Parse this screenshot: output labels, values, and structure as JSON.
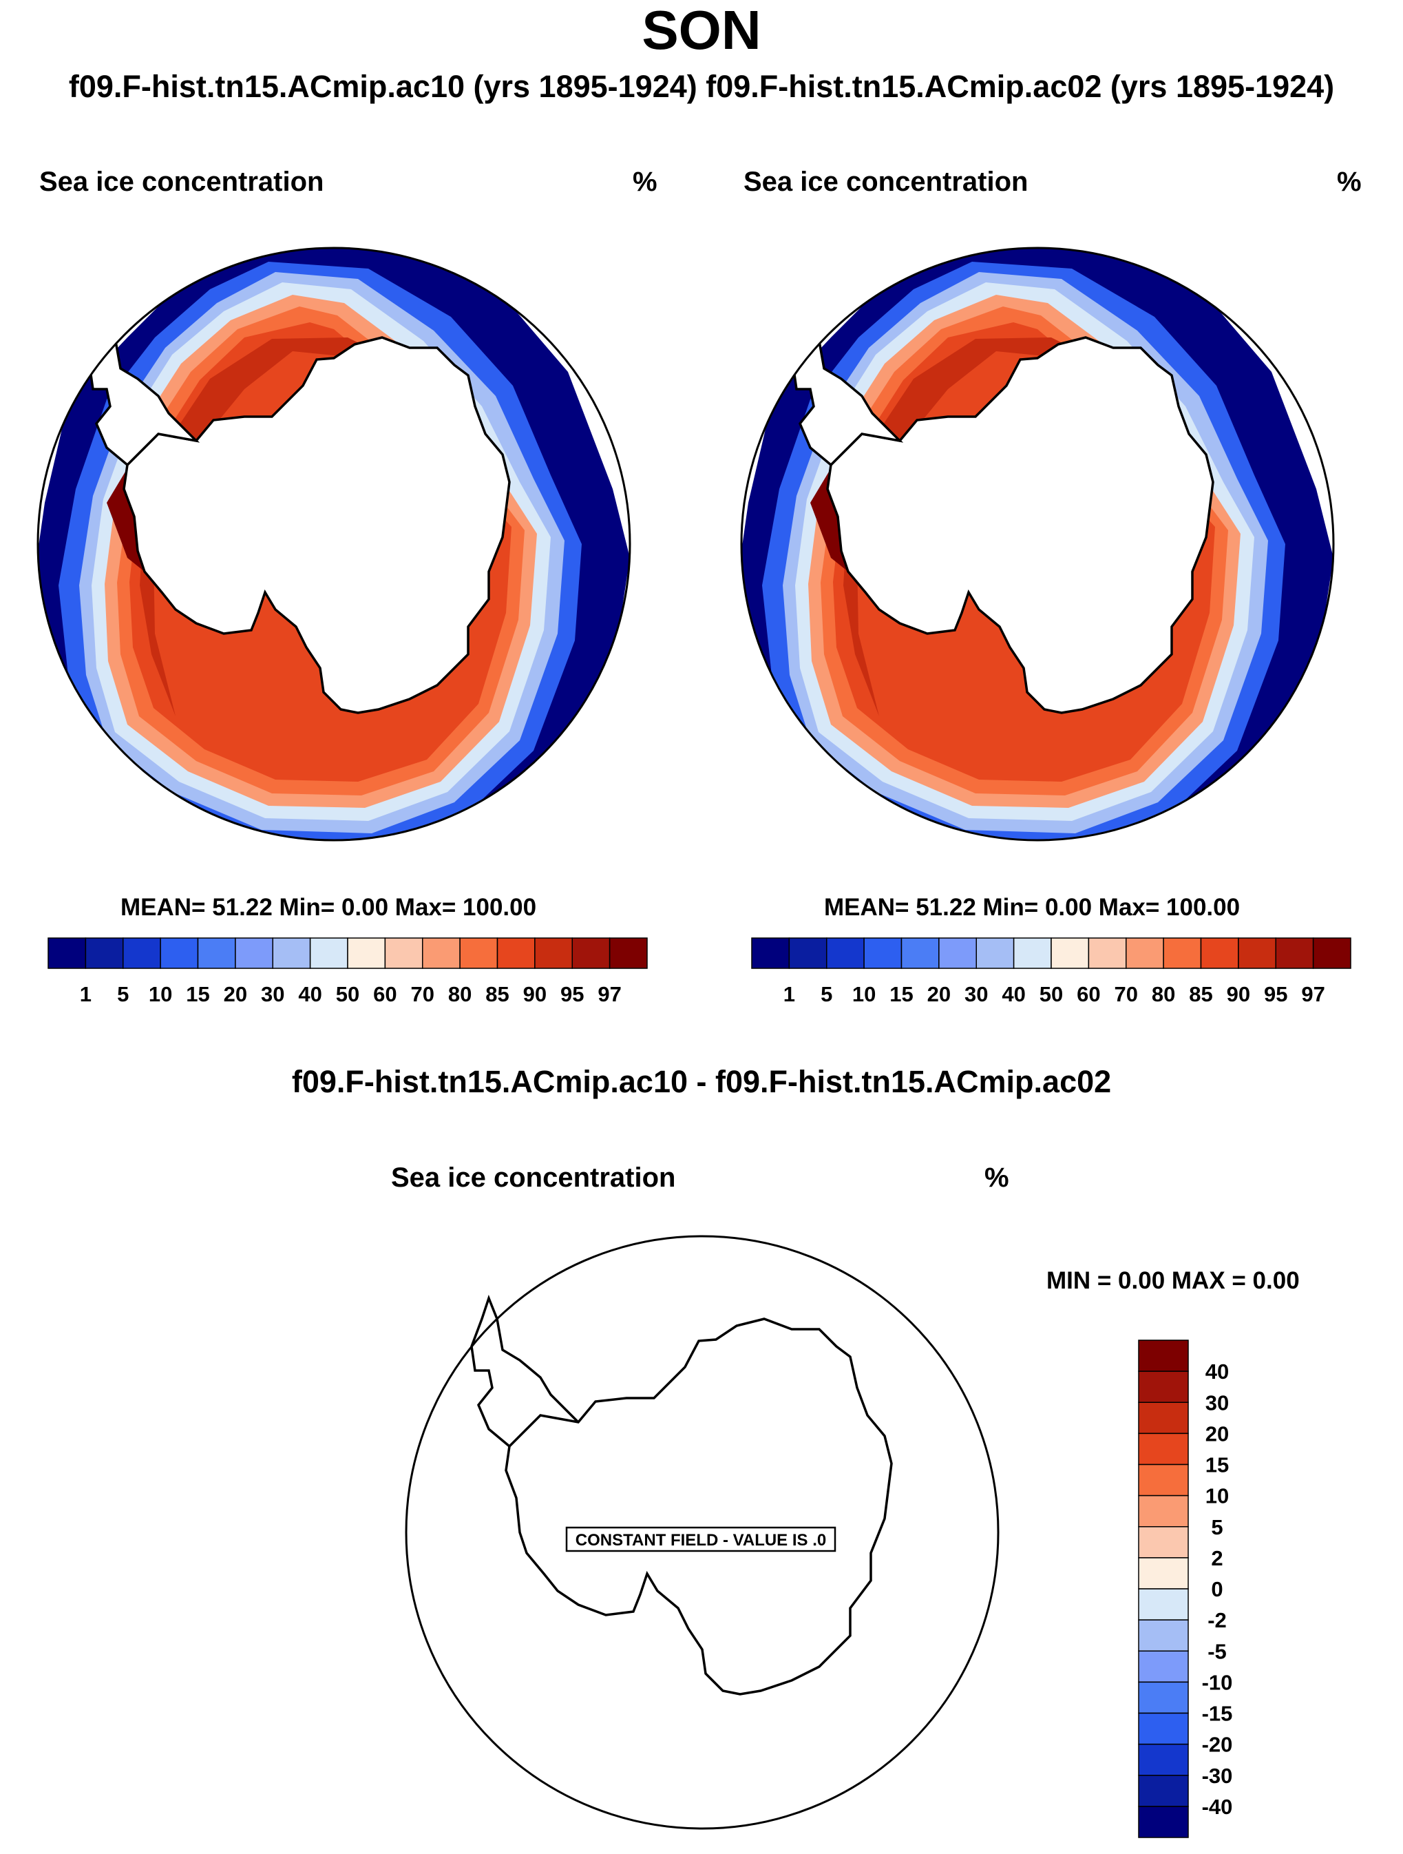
{
  "page": {
    "season_title": "SON",
    "runs_title": "f09.F-hist.tn15.ACmip.ac10 (yrs 1895-1924) f09.F-hist.tn15.ACmip.ac02 (yrs 1895-1924)"
  },
  "chart_data": [
    {
      "type": "heatmap",
      "projection": "south polar stereographic",
      "field_label": "Sea ice concentration",
      "units": "%",
      "stats_text": "MEAN=  51.22  Min=   0.00  Max= 100.00",
      "mean": 51.22,
      "min": 0.0,
      "max": 100.0,
      "colorbar_levels": [
        "1",
        "5",
        "10",
        "15",
        "20",
        "30",
        "40",
        "50",
        "60",
        "70",
        "80",
        "85",
        "90",
        "95",
        "97"
      ],
      "colorbar_colors": [
        "#00007d",
        "#0a1ea0",
        "#1437cd",
        "#2d5ff0",
        "#4b7df5",
        "#7d9bfa",
        "#a5bef5",
        "#d7e8f8",
        "#fdeedf",
        "#fbc8af",
        "#fa9b73",
        "#f66e3c",
        "#e6461e",
        "#c82d10",
        "#a0140a",
        "#7d0000"
      ]
    },
    {
      "type": "heatmap",
      "projection": "south polar stereographic",
      "field_label": "Sea ice concentration",
      "units": "%",
      "stats_text": "MEAN=  51.22  Min=   0.00  Max= 100.00",
      "mean": 51.22,
      "min": 0.0,
      "max": 100.0,
      "colorbar_levels": [
        "1",
        "5",
        "10",
        "15",
        "20",
        "30",
        "40",
        "50",
        "60",
        "70",
        "80",
        "85",
        "90",
        "95",
        "97"
      ],
      "colorbar_colors": [
        "#00007d",
        "#0a1ea0",
        "#1437cd",
        "#2d5ff0",
        "#4b7df5",
        "#7d9bfa",
        "#a5bef5",
        "#d7e8f8",
        "#fdeedf",
        "#fbc8af",
        "#fa9b73",
        "#f66e3c",
        "#e6461e",
        "#c82d10",
        "#a0140a",
        "#7d0000"
      ]
    },
    {
      "type": "heatmap",
      "projection": "south polar stereographic",
      "title": "f09.F-hist.tn15.ACmip.ac10 - f09.F-hist.tn15.ACmip.ac02",
      "field_label": "Sea ice concentration",
      "units": "%",
      "minmax_text": "MIN =   0.00 MAX =   0.00",
      "min": 0.0,
      "max": 0.0,
      "constant_field_text": "CONSTANT FIELD - VALUE IS .0",
      "colorbar_levels": [
        "40",
        "30",
        "20",
        "15",
        "10",
        "5",
        "2",
        "0",
        "-2",
        "-5",
        "-10",
        "-15",
        "-20",
        "-30",
        "-40"
      ],
      "colorbar_colors": [
        "#7d0000",
        "#a0140a",
        "#c82d10",
        "#e6461e",
        "#f66e3c",
        "#fa9b73",
        "#fbc8af",
        "#fdeedf",
        "#d7e8f8",
        "#a5bef5",
        "#7d9bfa",
        "#4b7df5",
        "#2d5ff0",
        "#1437cd",
        "#0a1ea0",
        "#00007d"
      ]
    }
  ]
}
